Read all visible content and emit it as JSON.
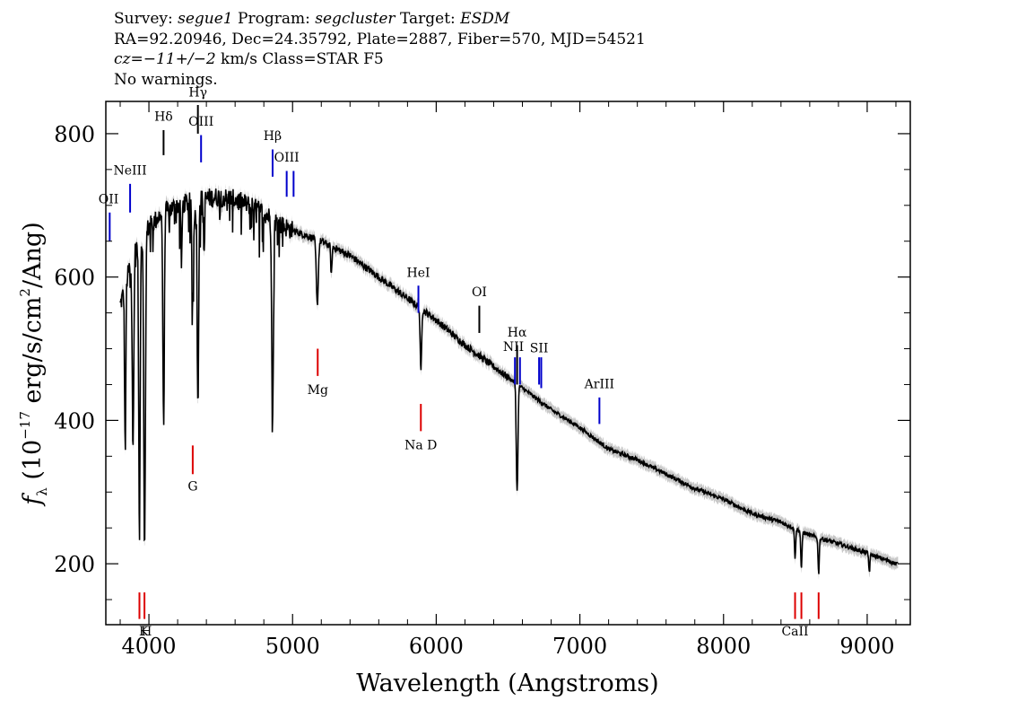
{
  "header": {
    "survey_label": "Survey:",
    "survey": "segue1",
    "program_label": "Program:",
    "program": "segcluster",
    "target_label": "Target:",
    "target": "ESDM",
    "line2": "RA=92.20946, Dec=24.35792, Plate=2887, Fiber=570, MJD=54521",
    "cz": "cz",
    "cz_value": "=−11+/−2",
    "cz_rest": " km/s Class=STAR F5",
    "line4": "No warnings."
  },
  "colors": {
    "spectrum": "#000000",
    "error_band": "#b0b0b0",
    "emission_line": "#0000cc",
    "absorption_line": "#dd0000",
    "axes": "#000000"
  },
  "chart_data": {
    "type": "line",
    "title": "",
    "xlabel": "Wavelength (Angstroms)",
    "ylabel_parts": {
      "f": "f",
      "sub": "λ",
      "pre": " (10",
      "exp1": "−17",
      "mid": " erg/s/cm",
      "exp2": "2",
      "post": "/Ang)"
    },
    "xlim": [
      3700,
      9300
    ],
    "ylim": [
      115,
      845
    ],
    "x_ticks": [
      4000,
      5000,
      6000,
      7000,
      8000,
      9000
    ],
    "x_tick_labels": [
      "4000",
      "5000",
      "6000",
      "7000",
      "8000",
      "9000"
    ],
    "y_ticks": [
      200,
      400,
      600,
      800
    ],
    "y_tick_labels": [
      "200",
      "400",
      "600",
      "800"
    ],
    "grid": false,
    "continuum": [
      [
        3800,
        560
      ],
      [
        3900,
        640
      ],
      [
        4000,
        670
      ],
      [
        4100,
        690
      ],
      [
        4200,
        700
      ],
      [
        4300,
        705
      ],
      [
        4400,
        710
      ],
      [
        4500,
        712
      ],
      [
        4600,
        708
      ],
      [
        4700,
        700
      ],
      [
        4800,
        690
      ],
      [
        4900,
        675
      ],
      [
        5000,
        665
      ],
      [
        5200,
        650
      ],
      [
        5400,
        630
      ],
      [
        5600,
        600
      ],
      [
        5800,
        570
      ],
      [
        6000,
        540
      ],
      [
        6200,
        505
      ],
      [
        6400,
        475
      ],
      [
        6600,
        445
      ],
      [
        6800,
        415
      ],
      [
        7000,
        390
      ],
      [
        7200,
        360
      ],
      [
        7400,
        345
      ],
      [
        7600,
        325
      ],
      [
        7800,
        305
      ],
      [
        8000,
        290
      ],
      [
        8200,
        270
      ],
      [
        8400,
        258
      ],
      [
        8600,
        240
      ],
      [
        8800,
        228
      ],
      [
        9000,
        215
      ],
      [
        9200,
        200
      ]
    ],
    "absorption_dips": [
      {
        "x": 3835,
        "depth": 230,
        "w": 6
      },
      {
        "x": 3889,
        "depth": 260,
        "w": 8
      },
      {
        "x": 3934,
        "depth": 420,
        "w": 7
      },
      {
        "x": 3970,
        "depth": 440,
        "w": 8
      },
      {
        "x": 4102,
        "depth": 300,
        "w": 7
      },
      {
        "x": 4227,
        "depth": 90,
        "w": 5
      },
      {
        "x": 4305,
        "depth": 140,
        "w": 8
      },
      {
        "x": 4341,
        "depth": 290,
        "w": 7
      },
      {
        "x": 4384,
        "depth": 80,
        "w": 5
      },
      {
        "x": 4861,
        "depth": 285,
        "w": 8
      },
      {
        "x": 5172,
        "depth": 90,
        "w": 10
      },
      {
        "x": 5270,
        "depth": 40,
        "w": 6
      },
      {
        "x": 5893,
        "depth": 90,
        "w": 7
      },
      {
        "x": 6563,
        "depth": 150,
        "w": 8
      },
      {
        "x": 8498,
        "depth": 40,
        "w": 6
      },
      {
        "x": 8542,
        "depth": 55,
        "w": 6
      },
      {
        "x": 8662,
        "depth": 50,
        "w": 6
      },
      {
        "x": 9015,
        "depth": 25,
        "w": 6
      }
    ],
    "spectrum_range": [
      3800,
      9215
    ],
    "line_markers": [
      {
        "label": "OII",
        "x": 3727,
        "color": "blue",
        "y_top": 690,
        "y_bot": 650,
        "label_y": 703,
        "label_align": "end"
      },
      {
        "label": "NeIII",
        "x": 3869,
        "color": "blue",
        "y_top": 730,
        "y_bot": 690,
        "label_y": 743
      },
      {
        "label": "Hδ",
        "x": 4102,
        "color": "black",
        "y_top": 805,
        "y_bot": 770,
        "label_y": 818
      },
      {
        "label": "Hγ",
        "x": 4341,
        "color": "black",
        "y_top": 840,
        "y_bot": 800,
        "label_y": 852
      },
      {
        "label": "OIII",
        "x": 4363,
        "color": "blue",
        "y_top": 798,
        "y_bot": 760,
        "label_y": 811
      },
      {
        "label": "Hβ",
        "x": 4861,
        "color": "blue",
        "y_top": 778,
        "y_bot": 740,
        "label_y": 791
      },
      {
        "label": "OIII",
        "x": 4959,
        "color": "blue",
        "y_top": 748,
        "y_bot": 712,
        "label_y": 761
      },
      {
        "label": "OIII",
        "x": 5007,
        "color": "blue",
        "y_top": 748,
        "y_bot": 712,
        "label_y": 0
      },
      {
        "label": "HeI",
        "x": 5876,
        "color": "blue",
        "y_top": 588,
        "y_bot": 550,
        "label_y": 600
      },
      {
        "label": "OI",
        "x": 6300,
        "color": "black",
        "y_top": 560,
        "y_bot": 522,
        "label_y": 573
      },
      {
        "label": "NII",
        "x": 6548,
        "color": "blue",
        "y_top": 488,
        "y_bot": 450,
        "label_y": 497,
        "label_align": "end"
      },
      {
        "label": "Hα",
        "x": 6563,
        "color": "black",
        "y_top": 505,
        "y_bot": 450,
        "label_y": 517
      },
      {
        "label": "NII",
        "x": 6583,
        "color": "blue",
        "y_top": 488,
        "y_bot": 450,
        "label_y": 0
      },
      {
        "label": "SII",
        "x": 6716,
        "color": "blue",
        "y_top": 488,
        "y_bot": 450,
        "label_y": 495
      },
      {
        "label": "SII",
        "x": 6731,
        "color": "blue",
        "y_top": 488,
        "y_bot": 445,
        "label_y": 0
      },
      {
        "label": "ArIII",
        "x": 7136,
        "color": "blue",
        "y_top": 432,
        "y_bot": 395,
        "label_y": 445
      },
      {
        "label": "Mg",
        "x": 5175,
        "color": "red",
        "y_top": 500,
        "y_bot": 462,
        "label_y": 437
      },
      {
        "label": "Na D",
        "x": 5893,
        "color": "red",
        "y_top": 423,
        "y_bot": 385,
        "label_y": 360
      },
      {
        "label": "G",
        "x": 4305,
        "color": "red",
        "y_top": 365,
        "y_bot": 325,
        "label_y": 302
      },
      {
        "label": "K",
        "x": 3934,
        "color": "red",
        "y_top": 160,
        "y_bot": 123,
        "label_y": 100,
        "label_align": "end"
      },
      {
        "label": "H",
        "x": 3969,
        "color": "red",
        "y_top": 160,
        "y_bot": 123,
        "label_y": 100,
        "label_align": "start"
      },
      {
        "label": "CaII",
        "x": 8498,
        "color": "red",
        "y_top": 160,
        "y_bot": 123,
        "label_y": 100
      },
      {
        "label": "",
        "x": 8542,
        "color": "red",
        "y_top": 160,
        "y_bot": 123,
        "label_y": 0
      },
      {
        "label": "",
        "x": 8662,
        "color": "red",
        "y_top": 160,
        "y_bot": 123,
        "label_y": 0
      }
    ]
  }
}
